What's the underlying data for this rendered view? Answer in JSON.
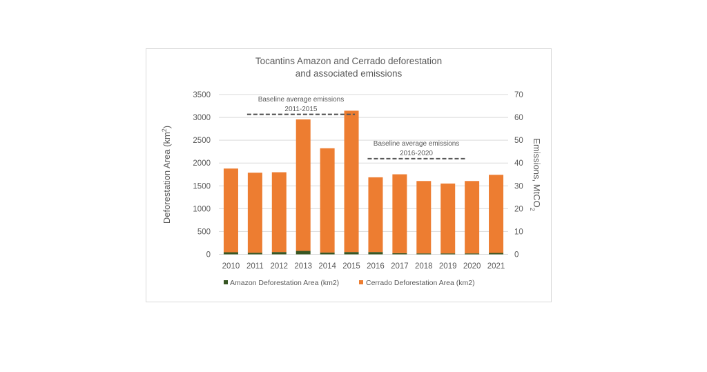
{
  "chart_data": {
    "type": "bar",
    "stacked": true,
    "title": "Tocantins Amazon and Cerrado  deforestation and associated emissions",
    "title_lines": [
      "Tocantins Amazon and Cerrado  deforestation",
      "and associated emissions"
    ],
    "ylabel": "Deforestation Area (km²)",
    "ylabel_parts": {
      "base": "Deforestation Area (km",
      "sup": "2",
      "end": ")"
    },
    "y2label": "Emissions, MtCO₂",
    "y2label_parts": {
      "base": "Emissions, MtCO",
      "sub": "2"
    },
    "ylim": [
      0,
      3500
    ],
    "y2lim": [
      0,
      70
    ],
    "yticks": [
      0,
      500,
      1000,
      1500,
      2000,
      2500,
      3000,
      3500
    ],
    "y2ticks": [
      0,
      10,
      20,
      30,
      40,
      50,
      60,
      70
    ],
    "grid": true,
    "legend_position": "bottom",
    "categories": [
      "2010",
      "2011",
      "2012",
      "2013",
      "2014",
      "2015",
      "2016",
      "2017",
      "2018",
      "2019",
      "2020",
      "2021"
    ],
    "series": [
      {
        "name": "Amazon Deforestation Area (km2)",
        "color": "#375623",
        "values": [
          45,
          35,
          50,
          75,
          40,
          50,
          50,
          25,
          20,
          20,
          20,
          30
        ]
      },
      {
        "name": "Cerrado Deforestation Area (km2)",
        "color": "#ED7D31",
        "values": [
          1834,
          1753,
          1748,
          2880,
          2283,
          3096,
          1637,
          1728,
          1586,
          1531,
          1586,
          1712
        ]
      }
    ],
    "annotations": [
      {
        "label_lines": [
          "Baseline average emissions",
          "2011-2015"
        ],
        "emissions": 61.3,
        "from": "2011",
        "to": "2015"
      },
      {
        "label_lines": [
          "Baseline average emissions",
          "2016-2020"
        ],
        "emissions": 41.9,
        "from": "2016",
        "to": "2020"
      }
    ]
  }
}
